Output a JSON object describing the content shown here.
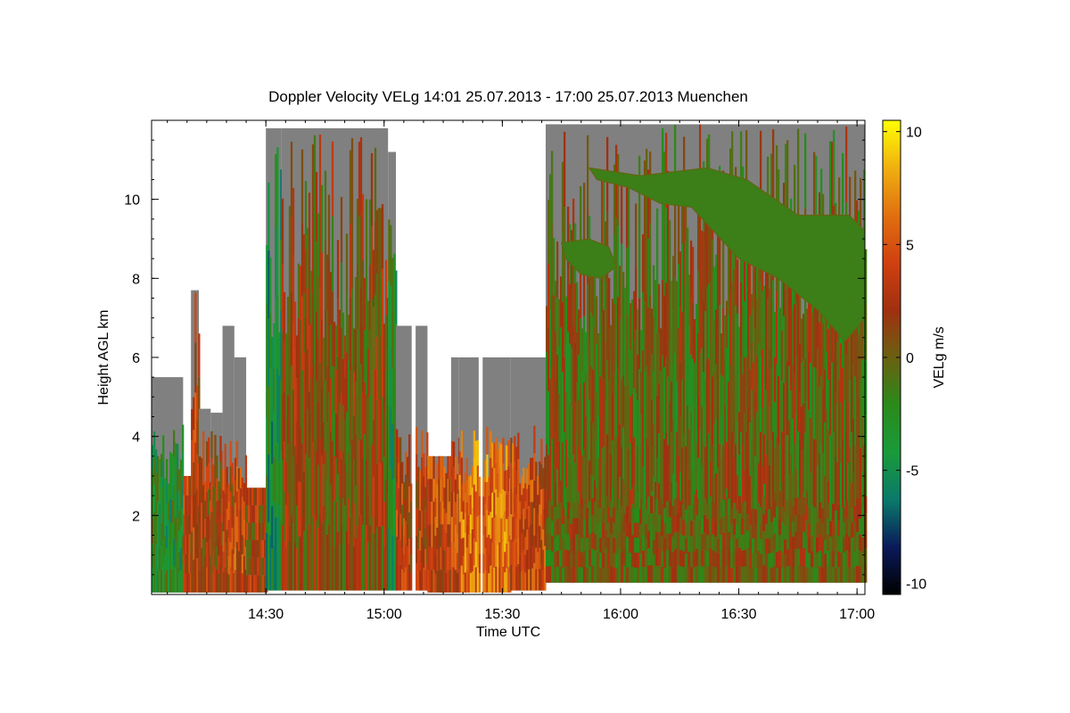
{
  "chart_data": {
    "type": "heatmap",
    "title": "Doppler Velocity VELg   14:01 25.07.2013 - 17:00 25.07.2013 Muenchen",
    "xlabel": "Time UTC",
    "ylabel": "Height AGL km",
    "xlim_minutes": [
      841,
      1022
    ],
    "ylim_km": [
      0,
      12
    ],
    "x_ticks": [
      {
        "label": "14:30",
        "minutes": 870
      },
      {
        "label": "15:00",
        "minutes": 900
      },
      {
        "label": "15:30",
        "minutes": 930
      },
      {
        "label": "16:00",
        "minutes": 960
      },
      {
        "label": "16:30",
        "minutes": 990
      },
      {
        "label": "17:00",
        "minutes": 1020
      }
    ],
    "y_ticks": [
      {
        "label": "2",
        "value": 2
      },
      {
        "label": "4",
        "value": 4
      },
      {
        "label": "6",
        "value": 6
      },
      {
        "label": "8",
        "value": 8
      },
      {
        "label": "10",
        "value": 10
      }
    ],
    "colorbar": {
      "label": "VELg m/s",
      "range": [
        -10.5,
        10.5
      ],
      "ticks": [
        {
          "label": "10",
          "value": 10
        },
        {
          "label": "5",
          "value": 5
        },
        {
          "label": "0",
          "value": 0
        },
        {
          "label": "-5",
          "value": -5
        },
        {
          "label": "-10",
          "value": -10
        }
      ],
      "colors": [
        "#000000",
        "#0a1a5a",
        "#0a7a6a",
        "#1a9a3a",
        "#2a8a1a",
        "#6a6010",
        "#a03010",
        "#d04010",
        "#e07010",
        "#f0b010",
        "#ffff00"
      ]
    },
    "no_data_color": "#808080",
    "segments": [
      {
        "t0": 841,
        "t1": 849,
        "top_km": 5.5,
        "bottom_km": 0.05,
        "velocity": -3
      },
      {
        "t0": 849,
        "t1": 851,
        "top_km": 3.0,
        "bottom_km": 0.05,
        "velocity": 3
      },
      {
        "t0": 851,
        "t1": 853,
        "top_km": 7.7,
        "bottom_km": 0.05,
        "velocity": 3
      },
      {
        "t0": 853,
        "t1": 856,
        "top_km": 4.7,
        "bottom_km": 0.05,
        "velocity": 2
      },
      {
        "t0": 856,
        "t1": 859,
        "top_km": 4.6,
        "bottom_km": 0.05,
        "velocity": 2
      },
      {
        "t0": 859,
        "t1": 862,
        "top_km": 6.8,
        "bottom_km": 0.05,
        "velocity": 3
      },
      {
        "t0": 862,
        "t1": 865,
        "top_km": 6.0,
        "bottom_km": 0.05,
        "velocity": 4
      },
      {
        "t0": 865,
        "t1": 870,
        "top_km": 2.7,
        "bottom_km": 0.05,
        "velocity": 2
      },
      {
        "t0": 870,
        "t1": 874,
        "top_km": 11.8,
        "bottom_km": 0.1,
        "velocity": -4
      },
      {
        "t0": 874,
        "t1": 901,
        "top_km": 11.8,
        "bottom_km": 0.1,
        "velocity": 1
      },
      {
        "t0": 901,
        "t1": 903,
        "top_km": 11.2,
        "bottom_km": 0.1,
        "velocity": -3
      },
      {
        "t0": 903,
        "t1": 907,
        "top_km": 6.8,
        "bottom_km": 0.1,
        "velocity": 3
      },
      {
        "t0": 908,
        "t1": 911,
        "top_km": 6.8,
        "bottom_km": 0.1,
        "velocity": 3
      },
      {
        "t0": 911,
        "t1": 917,
        "top_km": 3.5,
        "bottom_km": 0.05,
        "velocity": 4
      },
      {
        "t0": 917,
        "t1": 919,
        "top_km": 6.0,
        "bottom_km": 0.05,
        "velocity": 4
      },
      {
        "t0": 919,
        "t1": 924,
        "top_km": 6.0,
        "bottom_km": 0.05,
        "velocity": 6
      },
      {
        "t0": 925,
        "t1": 932,
        "top_km": 6.0,
        "bottom_km": 0.05,
        "velocity": 6
      },
      {
        "t0": 932,
        "t1": 941,
        "top_km": 6.0,
        "bottom_km": 0.1,
        "velocity": 4
      },
      {
        "t0": 941,
        "t1": 1022,
        "top_km": 11.9,
        "bottom_km": 0.3,
        "velocity": 0
      }
    ],
    "boundary_layer": [
      {
        "t0": 941,
        "t1": 1022,
        "top_km": 2.5,
        "bottom_km": 0.3,
        "velocity": 0.5
      }
    ],
    "cloud_features": [
      {
        "name": "upper cirrus band",
        "velocity": -1.5,
        "points_min_km": [
          [
            952,
            10.8
          ],
          [
            965,
            10.6
          ],
          [
            982,
            10.8
          ],
          [
            992,
            10.5
          ],
          [
            1005,
            9.6
          ],
          [
            1018,
            9.6
          ],
          [
            1022,
            9.2
          ],
          [
            1022,
            7.0
          ],
          [
            1017,
            6.4
          ],
          [
            1010,
            7.2
          ],
          [
            1000,
            8.0
          ],
          [
            990,
            8.5
          ],
          [
            978,
            9.8
          ],
          [
            970,
            9.9
          ],
          [
            962,
            10.3
          ],
          [
            954,
            10.5
          ]
        ]
      },
      {
        "name": "mid-level cloud patch",
        "velocity": -1.5,
        "points_min_km": [
          [
            945,
            8.9
          ],
          [
            952,
            9.0
          ],
          [
            957,
            8.8
          ],
          [
            959,
            8.3
          ],
          [
            955,
            8.0
          ],
          [
            950,
            8.1
          ],
          [
            946,
            8.5
          ]
        ]
      }
    ]
  }
}
